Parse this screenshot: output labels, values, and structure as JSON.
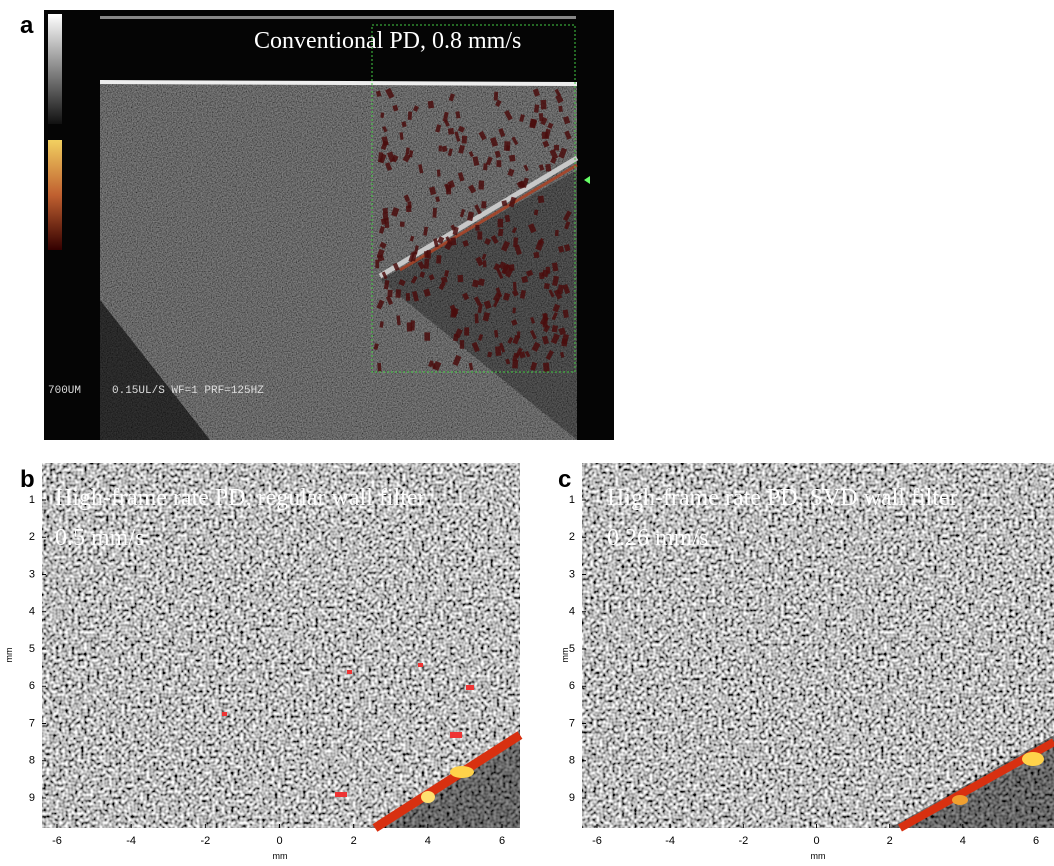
{
  "panels": [
    {
      "label": "a",
      "title": "Conventional PD, 0.8 mm/s",
      "scale_label": "700UM",
      "settings": "0.15UL/S WF=1 PRF=125HZ"
    },
    {
      "label": "b",
      "title": "High-frame rate PD, regular wall filter",
      "subtitle": "0.5 mm/s",
      "y_axis_label": "mm",
      "x_axis_label": "mm",
      "yticks": [
        1,
        2,
        3,
        4,
        5,
        6,
        7,
        8,
        9
      ],
      "xticks": [
        -6,
        -4,
        -2,
        0,
        2,
        4,
        6
      ]
    },
    {
      "label": "c",
      "title": "High-frame rate PD, SVD wall filter",
      "subtitle": "0.26 mm/s",
      "y_axis_label": "mm",
      "x_axis_label": "mm",
      "yticks": [
        1,
        2,
        3,
        4,
        5,
        6,
        7,
        8,
        9
      ],
      "xticks": [
        -6,
        -4,
        -2,
        0,
        2,
        4,
        6
      ]
    }
  ]
}
